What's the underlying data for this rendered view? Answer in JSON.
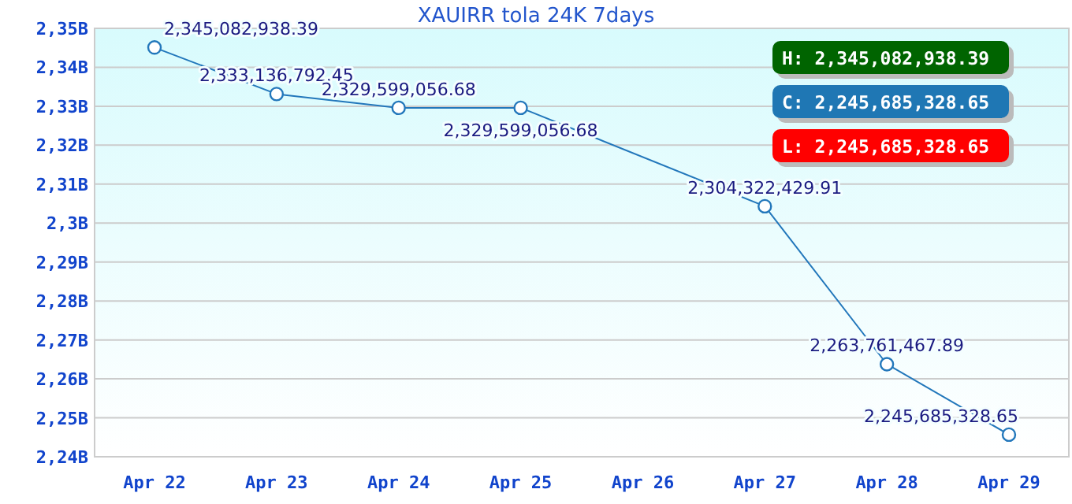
{
  "chart_data": {
    "type": "line",
    "title": "XAUIRR tola 24K 7days",
    "categories": [
      "Apr 22",
      "Apr 23",
      "Apr 24",
      "Apr 25",
      "Apr 26",
      "Apr 27",
      "Apr 28",
      "Apr 29"
    ],
    "series": [
      {
        "color": "#2277bb",
        "values": [
          2345082938.39,
          2333136792.45,
          2329599056.68,
          2329599056.68,
          null,
          2304322429.91,
          2263761467.89,
          2245685328.65
        ],
        "value_labels": [
          "2,345,082,938.39",
          "2,333,136,792.45",
          "2,329,599,056.68",
          "2,329,599,056.68",
          null,
          "2,304,322,429.91",
          "2,263,761,467.89",
          "2,245,685,328.65"
        ]
      }
    ],
    "ylim": [
      2240000000,
      2350000000
    ],
    "yticks": [
      {
        "value": 2240000000,
        "label": "2,24B"
      },
      {
        "value": 2250000000,
        "label": "2,25B"
      },
      {
        "value": 2260000000,
        "label": "2,26B"
      },
      {
        "value": 2270000000,
        "label": "2,27B"
      },
      {
        "value": 2280000000,
        "label": "2,28B"
      },
      {
        "value": 2290000000,
        "label": "2,29B"
      },
      {
        "value": 2300000000,
        "label": "2,3B"
      },
      {
        "value": 2310000000,
        "label": "2,31B"
      },
      {
        "value": 2320000000,
        "label": "2,32B"
      },
      {
        "value": 2330000000,
        "label": "2,33B"
      },
      {
        "value": 2340000000,
        "label": "2,34B"
      },
      {
        "value": 2350000000,
        "label": "2,35B"
      }
    ],
    "grid": "y",
    "marker": "circle",
    "annotations": [
      "H: 2,345,082,938.39",
      "C: 2,245,685,328.65",
      "L: 2,245,685,328.65"
    ]
  }
}
